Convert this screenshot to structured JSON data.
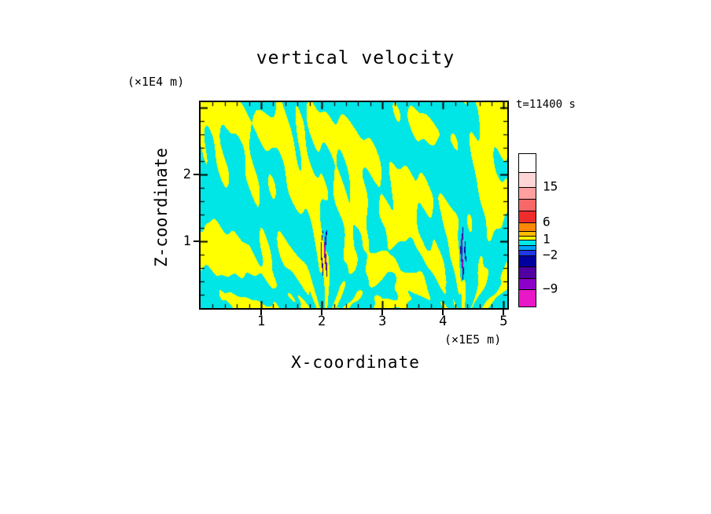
{
  "title": "vertical velocity",
  "timestamp_label": "t=11400 s",
  "axes": {
    "x": {
      "label": "X-coordinate",
      "unit": "(×1E5 m)",
      "tick_values": [
        1,
        2,
        3,
        4,
        5
      ],
      "tick_labels": [
        "1",
        "2",
        "3",
        "4",
        "5"
      ],
      "minor_tick_step": 0.2,
      "range": [
        0,
        5.06
      ]
    },
    "z": {
      "label": "Z-coordinate",
      "unit": "(×1E4 m)",
      "tick_values": [
        1,
        2
      ],
      "tick_labels": [
        "1",
        "2"
      ],
      "minor_tick_step": 0.2,
      "range": [
        0,
        3.08
      ]
    }
  },
  "colorbar": {
    "tick_labels": [
      {
        "text": "15",
        "pos": 0.216
      },
      {
        "text": "6",
        "pos": 0.448
      },
      {
        "text": "1",
        "pos": 0.562
      },
      {
        "text": "−2",
        "pos": 0.665
      },
      {
        "text": "−9",
        "pos": 0.887
      }
    ],
    "segments": [
      {
        "color": "#ffffff",
        "h": 0.12
      },
      {
        "color": "#ffd6d6",
        "h": 0.096
      },
      {
        "color": "#ff9f9f",
        "h": 0.078
      },
      {
        "color": "#f86868",
        "h": 0.078
      },
      {
        "color": "#ee2c2c",
        "h": 0.076
      },
      {
        "color": "#ff8800",
        "h": 0.058
      },
      {
        "color": "#ffbb00",
        "h": 0.028
      },
      {
        "color": "#ffff00",
        "h": 0.028
      },
      {
        "color": "#00e6e6",
        "h": 0.035
      },
      {
        "color": "#00a0ff",
        "h": 0.034
      },
      {
        "color": "#2038e8",
        "h": 0.034
      },
      {
        "color": "#0000a0",
        "h": 0.074
      },
      {
        "color": "#5000a0",
        "h": 0.074
      },
      {
        "color": "#8c00c8",
        "h": 0.074
      },
      {
        "color": "#e818c8",
        "h": 0.113
      }
    ]
  },
  "chart_data": {
    "type": "heatmap",
    "title": "vertical velocity",
    "xlabel": "X-coordinate (×1E5 m)",
    "ylabel": "Z-coordinate (×1E4 m)",
    "time_annotation": "t=11400 s",
    "x_range": [
      0,
      5.06
    ],
    "z_range": [
      0,
      3.08
    ],
    "colorbar_levels": [
      -9,
      -2,
      1,
      6,
      15
    ],
    "field_colors": {
      "updraft_positive": "#ffff00",
      "downdraft_negative": "#00e6e6",
      "extreme_negative": [
        "#0000a0",
        "#5000a0",
        "#cc00a8"
      ]
    },
    "features": {
      "description": "Turbulent wave field of interleaved yellow (positive) and cyan (negative) vertical-velocity streaks fanning upward across the domain; narrow extreme-negative plumes (navy/purple/magenta) rise from two source points near the bottom.",
      "wave_sources_x": [
        2.05,
        4.32
      ],
      "plume_z_extent": [
        0.3,
        1.35
      ]
    }
  }
}
